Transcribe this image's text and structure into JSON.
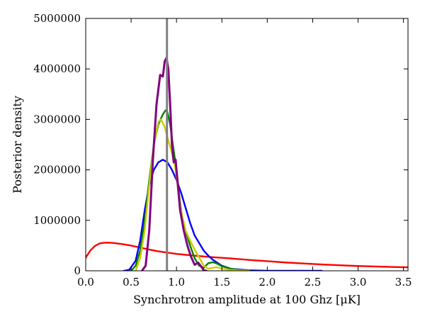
{
  "chart_data": {
    "type": "line",
    "title": "",
    "xlabel": "Synchrotron amplitude at 100 Ghz [μK]",
    "ylabel": "Posterior density",
    "xlim": [
      0.0,
      3.55
    ],
    "ylim": [
      0,
      5000000
    ],
    "x_ticks": [
      "0.0",
      "0.5",
      "1.0",
      "1.5",
      "2.0",
      "2.5",
      "3.0",
      "3.5"
    ],
    "y_ticks": [
      "0",
      "1000000",
      "2000000",
      "3000000",
      "4000000",
      "5000000"
    ],
    "grid": false,
    "legend": "none",
    "reference_line": {
      "x": 0.895,
      "color": "#808080"
    },
    "series": [
      {
        "color": "#ff0000",
        "points": [
          [
            0.0,
            260000
          ],
          [
            0.05,
            400000
          ],
          [
            0.1,
            490000
          ],
          [
            0.15,
            540000
          ],
          [
            0.2,
            555000
          ],
          [
            0.25,
            558000
          ],
          [
            0.3,
            552000
          ],
          [
            0.4,
            530000
          ],
          [
            0.5,
            500000
          ],
          [
            0.6,
            460000
          ],
          [
            0.7,
            420000
          ],
          [
            0.8,
            385000
          ],
          [
            0.9,
            360000
          ],
          [
            1.0,
            335000
          ],
          [
            1.2,
            300000
          ],
          [
            1.4,
            270000
          ],
          [
            1.6,
            245000
          ],
          [
            1.8,
            215000
          ],
          [
            2.0,
            190000
          ],
          [
            2.2,
            165000
          ],
          [
            2.4,
            145000
          ],
          [
            2.6,
            125000
          ],
          [
            2.8,
            110000
          ],
          [
            3.0,
            95000
          ],
          [
            3.2,
            85000
          ],
          [
            3.4,
            75000
          ],
          [
            3.55,
            70000
          ]
        ]
      },
      {
        "color": "#0000ff",
        "points": [
          [
            0.42,
            0
          ],
          [
            0.48,
            20000
          ],
          [
            0.55,
            200000
          ],
          [
            0.6,
            600000
          ],
          [
            0.65,
            1200000
          ],
          [
            0.7,
            1700000
          ],
          [
            0.75,
            2000000
          ],
          [
            0.8,
            2150000
          ],
          [
            0.85,
            2200000
          ],
          [
            0.9,
            2150000
          ],
          [
            0.95,
            2000000
          ],
          [
            1.0,
            1800000
          ],
          [
            1.05,
            1550000
          ],
          [
            1.1,
            1250000
          ],
          [
            1.15,
            950000
          ],
          [
            1.2,
            700000
          ],
          [
            1.25,
            550000
          ],
          [
            1.3,
            400000
          ],
          [
            1.35,
            300000
          ],
          [
            1.4,
            220000
          ],
          [
            1.5,
            100000
          ],
          [
            1.6,
            40000
          ],
          [
            1.8,
            10000
          ],
          [
            2.0,
            0
          ],
          [
            2.6,
            0
          ]
        ]
      },
      {
        "color": "#008000",
        "points": [
          [
            0.5,
            0
          ],
          [
            0.55,
            100000
          ],
          [
            0.6,
            400000
          ],
          [
            0.65,
            1000000
          ],
          [
            0.7,
            1800000
          ],
          [
            0.75,
            2500000
          ],
          [
            0.8,
            2900000
          ],
          [
            0.85,
            3100000
          ],
          [
            0.88,
            3180000
          ],
          [
            0.9,
            3150000
          ],
          [
            0.93,
            2900000
          ],
          [
            0.96,
            2500000
          ],
          [
            1.0,
            2000000
          ],
          [
            1.03,
            1500000
          ],
          [
            1.06,
            1100000
          ],
          [
            1.1,
            800000
          ],
          [
            1.15,
            500000
          ],
          [
            1.2,
            250000
          ],
          [
            1.25,
            100000
          ],
          [
            1.3,
            60000
          ],
          [
            1.35,
            150000
          ],
          [
            1.4,
            170000
          ],
          [
            1.45,
            140000
          ],
          [
            1.5,
            90000
          ],
          [
            1.6,
            40000
          ],
          [
            1.7,
            15000
          ],
          [
            1.8,
            0
          ]
        ]
      },
      {
        "color": "#cccc00",
        "points": [
          [
            0.55,
            0
          ],
          [
            0.6,
            250000
          ],
          [
            0.65,
            800000
          ],
          [
            0.7,
            1700000
          ],
          [
            0.75,
            2500000
          ],
          [
            0.8,
            2950000
          ],
          [
            0.83,
            3000000
          ],
          [
            0.87,
            2850000
          ],
          [
            0.9,
            2650000
          ],
          [
            0.94,
            2400000
          ],
          [
            0.98,
            2100000
          ],
          [
            1.02,
            1600000
          ],
          [
            1.06,
            1100000
          ],
          [
            1.1,
            800000
          ],
          [
            1.15,
            600000
          ],
          [
            1.2,
            420000
          ],
          [
            1.25,
            260000
          ],
          [
            1.3,
            100000
          ],
          [
            1.35,
            40000
          ],
          [
            1.4,
            60000
          ],
          [
            1.45,
            70000
          ],
          [
            1.5,
            40000
          ],
          [
            1.6,
            15000
          ],
          [
            1.8,
            0
          ]
        ]
      },
      {
        "color": "#800080",
        "points": [
          [
            0.62,
            0
          ],
          [
            0.66,
            100000
          ],
          [
            0.7,
            800000
          ],
          [
            0.74,
            2200000
          ],
          [
            0.78,
            3300000
          ],
          [
            0.82,
            3880000
          ],
          [
            0.85,
            3850000
          ],
          [
            0.87,
            4150000
          ],
          [
            0.89,
            4220000
          ],
          [
            0.91,
            4000000
          ],
          [
            0.93,
            3300000
          ],
          [
            0.95,
            2500000
          ],
          [
            0.97,
            2150000
          ],
          [
            0.99,
            2200000
          ],
          [
            1.01,
            1800000
          ],
          [
            1.04,
            1200000
          ],
          [
            1.08,
            800000
          ],
          [
            1.12,
            500000
          ],
          [
            1.16,
            280000
          ],
          [
            1.2,
            120000
          ],
          [
            1.24,
            160000
          ],
          [
            1.27,
            90000
          ],
          [
            1.3,
            10000
          ],
          [
            1.33,
            0
          ]
        ]
      }
    ]
  }
}
